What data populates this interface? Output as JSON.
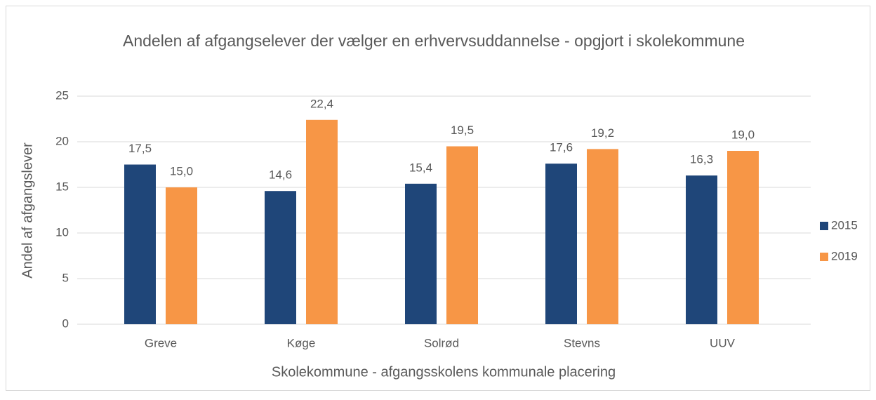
{
  "chart_data": {
    "type": "bar",
    "title": "Andelen af afgangselever der vælger en erhvervsuddannelse - opgjort i skolekommune",
    "y_label": "Andel af afgangslever",
    "x_label": "Skolekommune - afgangsskolens kommunale placering",
    "categories": [
      "Greve",
      "Køge",
      "Solrød",
      "Stevns",
      "UUV"
    ],
    "series": [
      {
        "name": "2015",
        "color": "#1f4679",
        "values": [
          17.5,
          14.6,
          15.4,
          17.6,
          16.3
        ],
        "value_labels": [
          "17,5",
          "14,6",
          "15,4",
          "17,6",
          "16,3"
        ]
      },
      {
        "name": "2019",
        "color": "#f79646",
        "values": [
          15.0,
          22.4,
          19.5,
          19.2,
          19.0
        ],
        "value_labels": [
          "15,0",
          "22,4",
          "19,5",
          "19,2",
          "19,0"
        ]
      }
    ],
    "ylim": [
      0,
      25
    ],
    "yticks": [
      0,
      5,
      10,
      15,
      20,
      25
    ],
    "grid": true,
    "legend": "right"
  }
}
